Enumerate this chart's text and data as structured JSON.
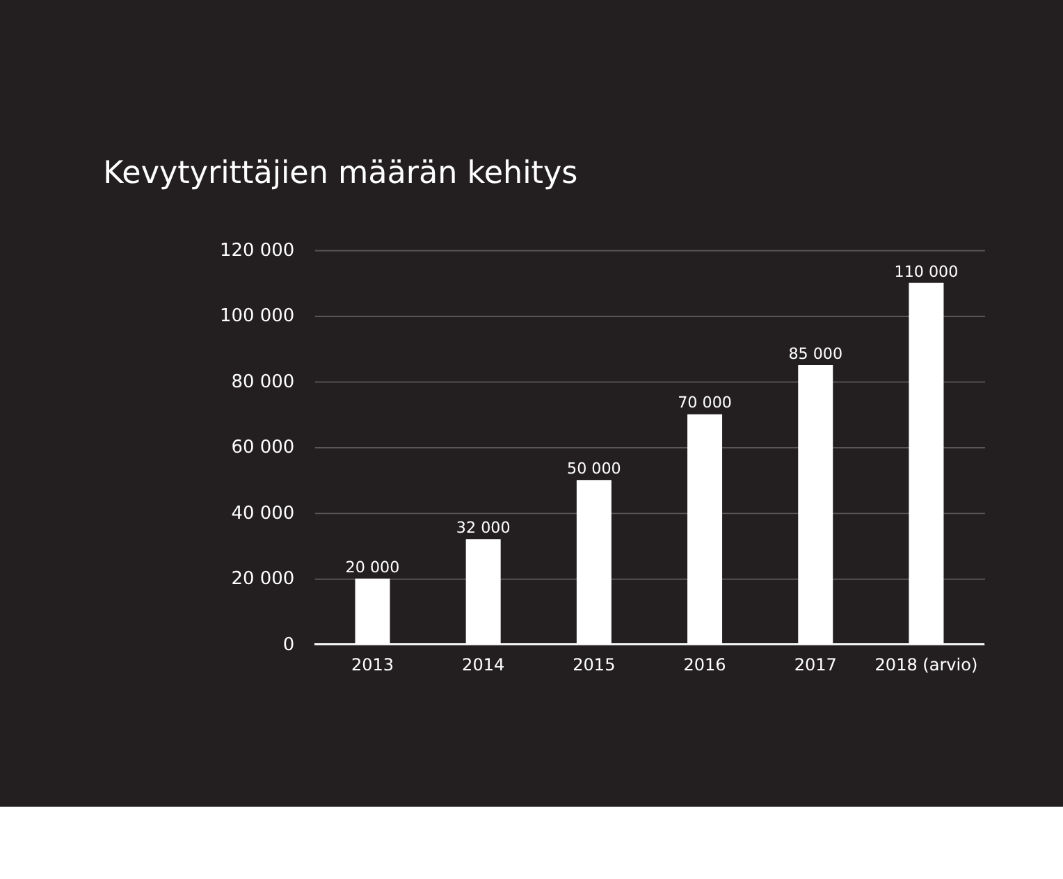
{
  "chart_data": {
    "type": "bar",
    "title": "Kevytyrittäjien määrän kehitys",
    "categories": [
      "2013",
      "2014",
      "2015",
      "2016",
      "2017",
      "2018 (arvio)"
    ],
    "values": [
      20000,
      32000,
      50000,
      70000,
      85000,
      110000
    ],
    "value_labels": [
      "20 000",
      "32 000",
      "50 000",
      "70 000",
      "85 000",
      "110 000"
    ],
    "color": "#ffffff",
    "ylim": [
      0,
      120000
    ],
    "yticks": [
      {
        "value": 0,
        "label": "0"
      },
      {
        "value": 20000,
        "label": "20 000"
      },
      {
        "value": 40000,
        "label": "40 000"
      },
      {
        "value": 60000,
        "label": "60 000"
      },
      {
        "value": 80000,
        "label": "80 000"
      },
      {
        "value": 100000,
        "label": "100 000"
      },
      {
        "value": 120000,
        "label": "120 000"
      }
    ],
    "grid": "y"
  }
}
